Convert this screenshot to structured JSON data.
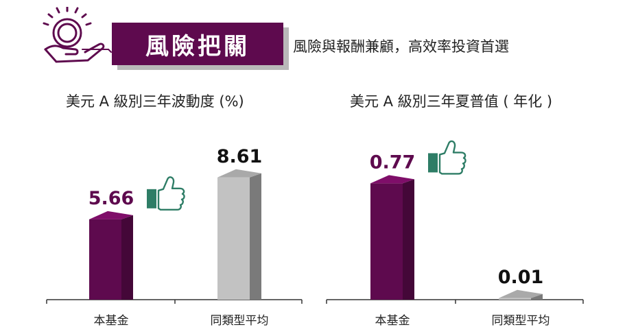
{
  "header": {
    "title": "風險把關",
    "subtitle": "風險與報酬兼顧，高效率投資首選",
    "icon": "hand-holding-coin-icon"
  },
  "colors": {
    "fund": "#5e0a4e",
    "average": "#b5b5b5",
    "thumb": "#2e7d66",
    "header_bg": "#5e0a4e"
  },
  "chart_data": [
    {
      "type": "bar",
      "title": "美元 A 級別三年波動度 (%)",
      "categories": [
        "本基金",
        "同類型平均"
      ],
      "values": [
        5.66,
        8.61
      ],
      "labels": [
        "5.66",
        "8.61"
      ],
      "highlight": "本基金",
      "ylim": [
        0,
        10
      ]
    },
    {
      "type": "bar",
      "title": "美元 A 級別三年夏普值 ( 年化 )",
      "categories": [
        "本基金",
        "同類型平均"
      ],
      "values": [
        0.77,
        0.01
      ],
      "labels": [
        "0.77",
        "0.01"
      ],
      "highlight": "本基金",
      "ylim": [
        0,
        0.89
      ]
    }
  ]
}
